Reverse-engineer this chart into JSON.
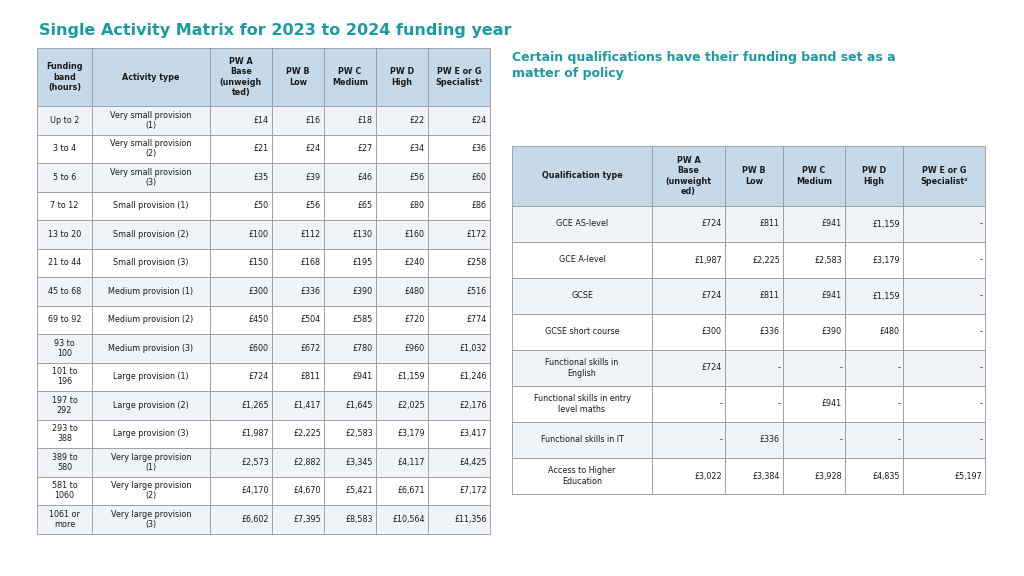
{
  "title": "Single Activity Matrix for 2023 to 2024 funding year",
  "title_color": "#1a9ba1",
  "background_color": "#ffffff",
  "table1": {
    "col_headers": [
      "Funding\nband\n(hours)",
      "Activity type",
      "PW A\nBase\n(unweigh\nted)",
      "PW B\nLow",
      "PW C\nMedium",
      "PW D\nHigh",
      "PW E or G\nSpecialist¹"
    ],
    "rows": [
      [
        "Up to 2",
        "Very small provision\n(1)",
        "£14",
        "£16",
        "£18",
        "£22",
        "£24"
      ],
      [
        "3 to 4",
        "Very small provision\n(2)",
        "£21",
        "£24",
        "£27",
        "£34",
        "£36"
      ],
      [
        "5 to 6",
        "Very small provision\n(3)",
        "£35",
        "£39",
        "£46",
        "£56",
        "£60"
      ],
      [
        "7 to 12",
        "Small provision (1)",
        "£50",
        "£56",
        "£65",
        "£80",
        "£86"
      ],
      [
        "13 to 20",
        "Small provision (2)",
        "£100",
        "£112",
        "£130",
        "£160",
        "£172"
      ],
      [
        "21 to 44",
        "Small provision (3)",
        "£150",
        "£168",
        "£195",
        "£240",
        "£258"
      ],
      [
        "45 to 68",
        "Medium provision (1)",
        "£300",
        "£336",
        "£390",
        "£480",
        "£516"
      ],
      [
        "69 to 92",
        "Medium provision (2)",
        "£450",
        "£504",
        "£585",
        "£720",
        "£774"
      ],
      [
        "93 to\n100",
        "Medium provision (3)",
        "£600",
        "£672",
        "£780",
        "£960",
        "£1,032"
      ],
      [
        "101 to\n196",
        "Large provision (1)",
        "£724",
        "£811",
        "£941",
        "£1,159",
        "£1,246"
      ],
      [
        "197 to\n292",
        "Large provision (2)",
        "£1,265",
        "£1,417",
        "£1,645",
        "£2,025",
        "£2,176"
      ],
      [
        "293 to\n388",
        "Large provision (3)",
        "£1,987",
        "£2,225",
        "£2,583",
        "£3,179",
        "£3,417"
      ],
      [
        "389 to\n580",
        "Very large provision\n(1)",
        "£2,573",
        "£2,882",
        "£3,345",
        "£4,117",
        "£4,425"
      ],
      [
        "581 to\n1060",
        "Very large provision\n(2)",
        "£4,170",
        "£4,670",
        "£5,421",
        "£6,671",
        "£7,172"
      ],
      [
        "1061 or\nmore",
        "Very large provision\n(3)",
        "£6,602",
        "£7,395",
        "£8,583",
        "£10,564",
        "£11,356"
      ]
    ],
    "header_bg": "#c6d9e9",
    "border_color": "#999999"
  },
  "subtitle": "Certain qualifications have their funding band set as a\nmatter of policy",
  "subtitle_color": "#1a9ba1",
  "table2": {
    "col_headers": [
      "Qualification type",
      "PW A\nBase\n(unweight\ned)",
      "PW B\nLow",
      "PW C\nMedium",
      "PW D\nHigh",
      "PW E or G\nSpecialist²"
    ],
    "rows": [
      [
        "GCE AS-level",
        "£724",
        "£811",
        "£941",
        "£1,159",
        "-"
      ],
      [
        "GCE A-level",
        "£1,987",
        "£2,225",
        "£2,583",
        "£3,179",
        "-"
      ],
      [
        "GCSE",
        "£724",
        "£811",
        "£941",
        "£1,159",
        "-"
      ],
      [
        "GCSE short course",
        "£300",
        "£336",
        "£390",
        "£480",
        "-"
      ],
      [
        "Functional skills in\nEnglish",
        "£724",
        "-",
        "-",
        "-",
        "-"
      ],
      [
        "Functional skills in entry\nlevel maths",
        "-",
        "-",
        "£941",
        "-",
        "-"
      ],
      [
        "Functional skills in IT",
        "-",
        "£336",
        "-",
        "-",
        "-"
      ],
      [
        "Access to Higher\nEducation",
        "£3,022",
        "£3,384",
        "£3,928",
        "£4,835",
        "£5,197"
      ]
    ],
    "header_bg": "#c6d9e9",
    "border_color": "#999999"
  }
}
